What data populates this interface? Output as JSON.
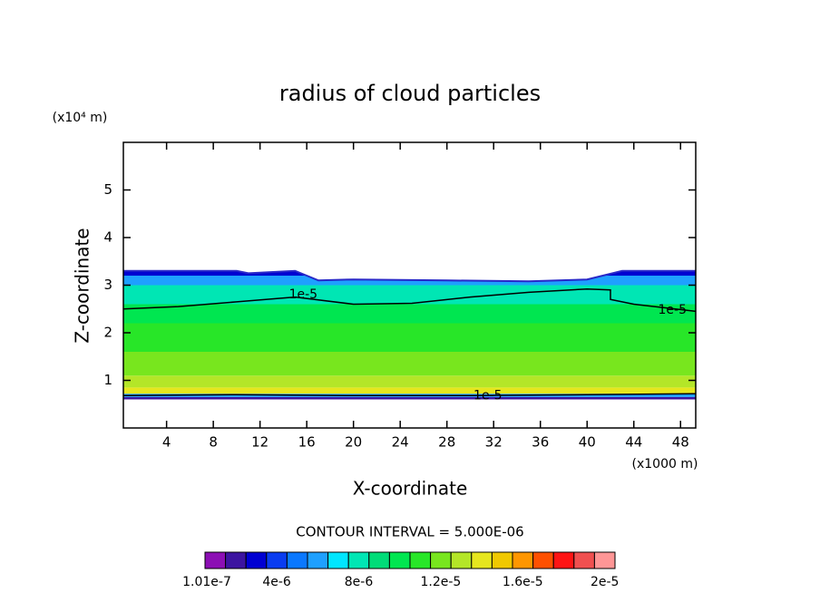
{
  "chart_data": {
    "type": "contour",
    "title": "radius of cloud particles",
    "xlabel": "X-coordinate",
    "ylabel": "Z-coordinate",
    "xunit": "(x1000 m)",
    "yunit": "(x10⁴ m)",
    "xlim": [
      0.3,
      49.3
    ],
    "ylim": [
      0,
      6
    ],
    "xticks": [
      4,
      8,
      12,
      16,
      20,
      24,
      28,
      32,
      36,
      40,
      44,
      48
    ],
    "yticks": [
      1,
      2,
      3,
      4,
      5
    ],
    "field": {
      "z_edges": [
        0.6,
        0.65,
        0.72,
        0.85,
        1.1,
        1.6,
        2.2,
        2.6,
        3.0,
        3.2,
        3.35
      ],
      "values": [
        2e-06,
        6e-06,
        1.4e-05,
        1.3e-05,
        1.2e-05,
        1.1e-05,
        1e-05,
        8e-06,
        6e-06,
        3e-06
      ]
    },
    "cloud_top": {
      "x": [
        0.3,
        10,
        11,
        15,
        17,
        20,
        28,
        35,
        40,
        43,
        49.3
      ],
      "z": [
        3.3,
        3.3,
        3.25,
        3.3,
        3.1,
        3.12,
        3.1,
        3.08,
        3.12,
        3.3,
        3.3
      ]
    },
    "contours": [
      {
        "x": [
          0.3,
          5,
          10,
          15,
          20,
          25,
          30,
          35,
          40,
          42,
          42,
          44,
          49.3
        ],
        "z": [
          2.5,
          2.55,
          2.65,
          2.75,
          2.6,
          2.62,
          2.75,
          2.85,
          2.92,
          2.9,
          2.7,
          2.6,
          2.45
        ]
      },
      {
        "x": [
          0.3,
          10,
          20,
          30,
          40,
          49.3
        ],
        "z": [
          0.68,
          0.7,
          0.68,
          0.68,
          0.7,
          0.72
        ]
      }
    ],
    "contour_labels": [
      {
        "value": 1e-05,
        "label": "1e-5",
        "x": 15.7,
        "z": 2.8
      },
      {
        "value": 1e-05,
        "label": "1e-5",
        "x": 47.3,
        "z": 2.48
      },
      {
        "value": 1e-05,
        "label": "1e-5",
        "x": 31.5,
        "z": 0.68
      }
    ],
    "contour_interval": "CONTOUR INTERVAL = 5.000E-06",
    "colorbar": {
      "colors": [
        "#8c0fb4",
        "#3c14a0",
        "#0000d2",
        "#0a3cf0",
        "#0a78ff",
        "#1ea0ff",
        "#00e6ff",
        "#00e6b4",
        "#00dc78",
        "#00e650",
        "#28e628",
        "#78e61e",
        "#b4e628",
        "#e6e61e",
        "#f0c800",
        "#ff9600",
        "#ff5000",
        "#ff1414",
        "#f05050",
        "#ff9696"
      ],
      "clim": [
        5e-07,
        2.05e-05
      ],
      "ticks": [
        {
          "value": 1.01e-07,
          "label": "1.01e-7"
        },
        {
          "value": 4e-06,
          "label": "4e-6"
        },
        {
          "value": 8e-06,
          "label": "8e-6"
        },
        {
          "value": 1.2e-05,
          "label": "1.2e-5"
        },
        {
          "value": 1.6e-05,
          "label": "1.6e-5"
        },
        {
          "value": 2e-05,
          "label": "2e-5"
        }
      ]
    }
  }
}
